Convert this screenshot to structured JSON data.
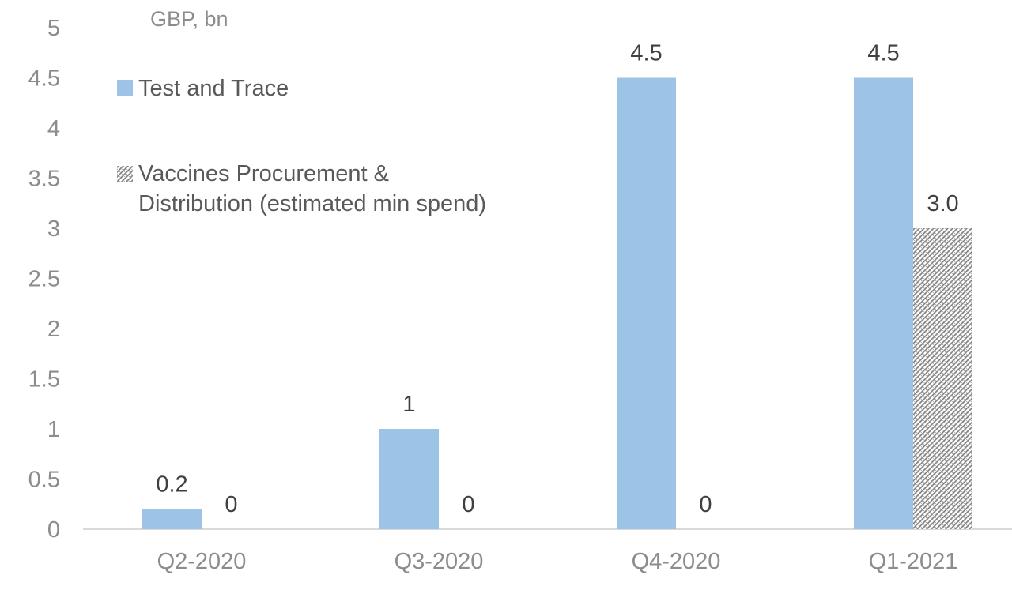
{
  "chart_data": {
    "type": "bar",
    "unit_label": "GBP, bn",
    "categories": [
      "Q2-2020",
      "Q3-2020",
      "Q4-2020",
      "Q1-2021"
    ],
    "series": [
      {
        "name": "Test and Trace",
        "values": [
          0.2,
          1,
          4.5,
          4.5
        ],
        "labels": [
          "0.2",
          "1",
          "4.5",
          "4.5"
        ],
        "color": "#9dc3e6",
        "pattern": "solid"
      },
      {
        "name_lines": [
          "Vaccines Procurement &",
          "Distribution (estimated min spend)"
        ],
        "values": [
          0,
          0,
          0,
          3.0
        ],
        "labels": [
          "0",
          "0",
          "0",
          "3.0"
        ],
        "color": "#7f7f7f",
        "pattern": "hatched"
      }
    ],
    "yticks": [
      "0",
      "0.5",
      "1",
      "1.5",
      "2",
      "2.5",
      "3",
      "3.5",
      "4",
      "4.5",
      "5"
    ],
    "ylim": [
      0,
      5
    ],
    "grid": false,
    "legend_position": "top-left"
  }
}
